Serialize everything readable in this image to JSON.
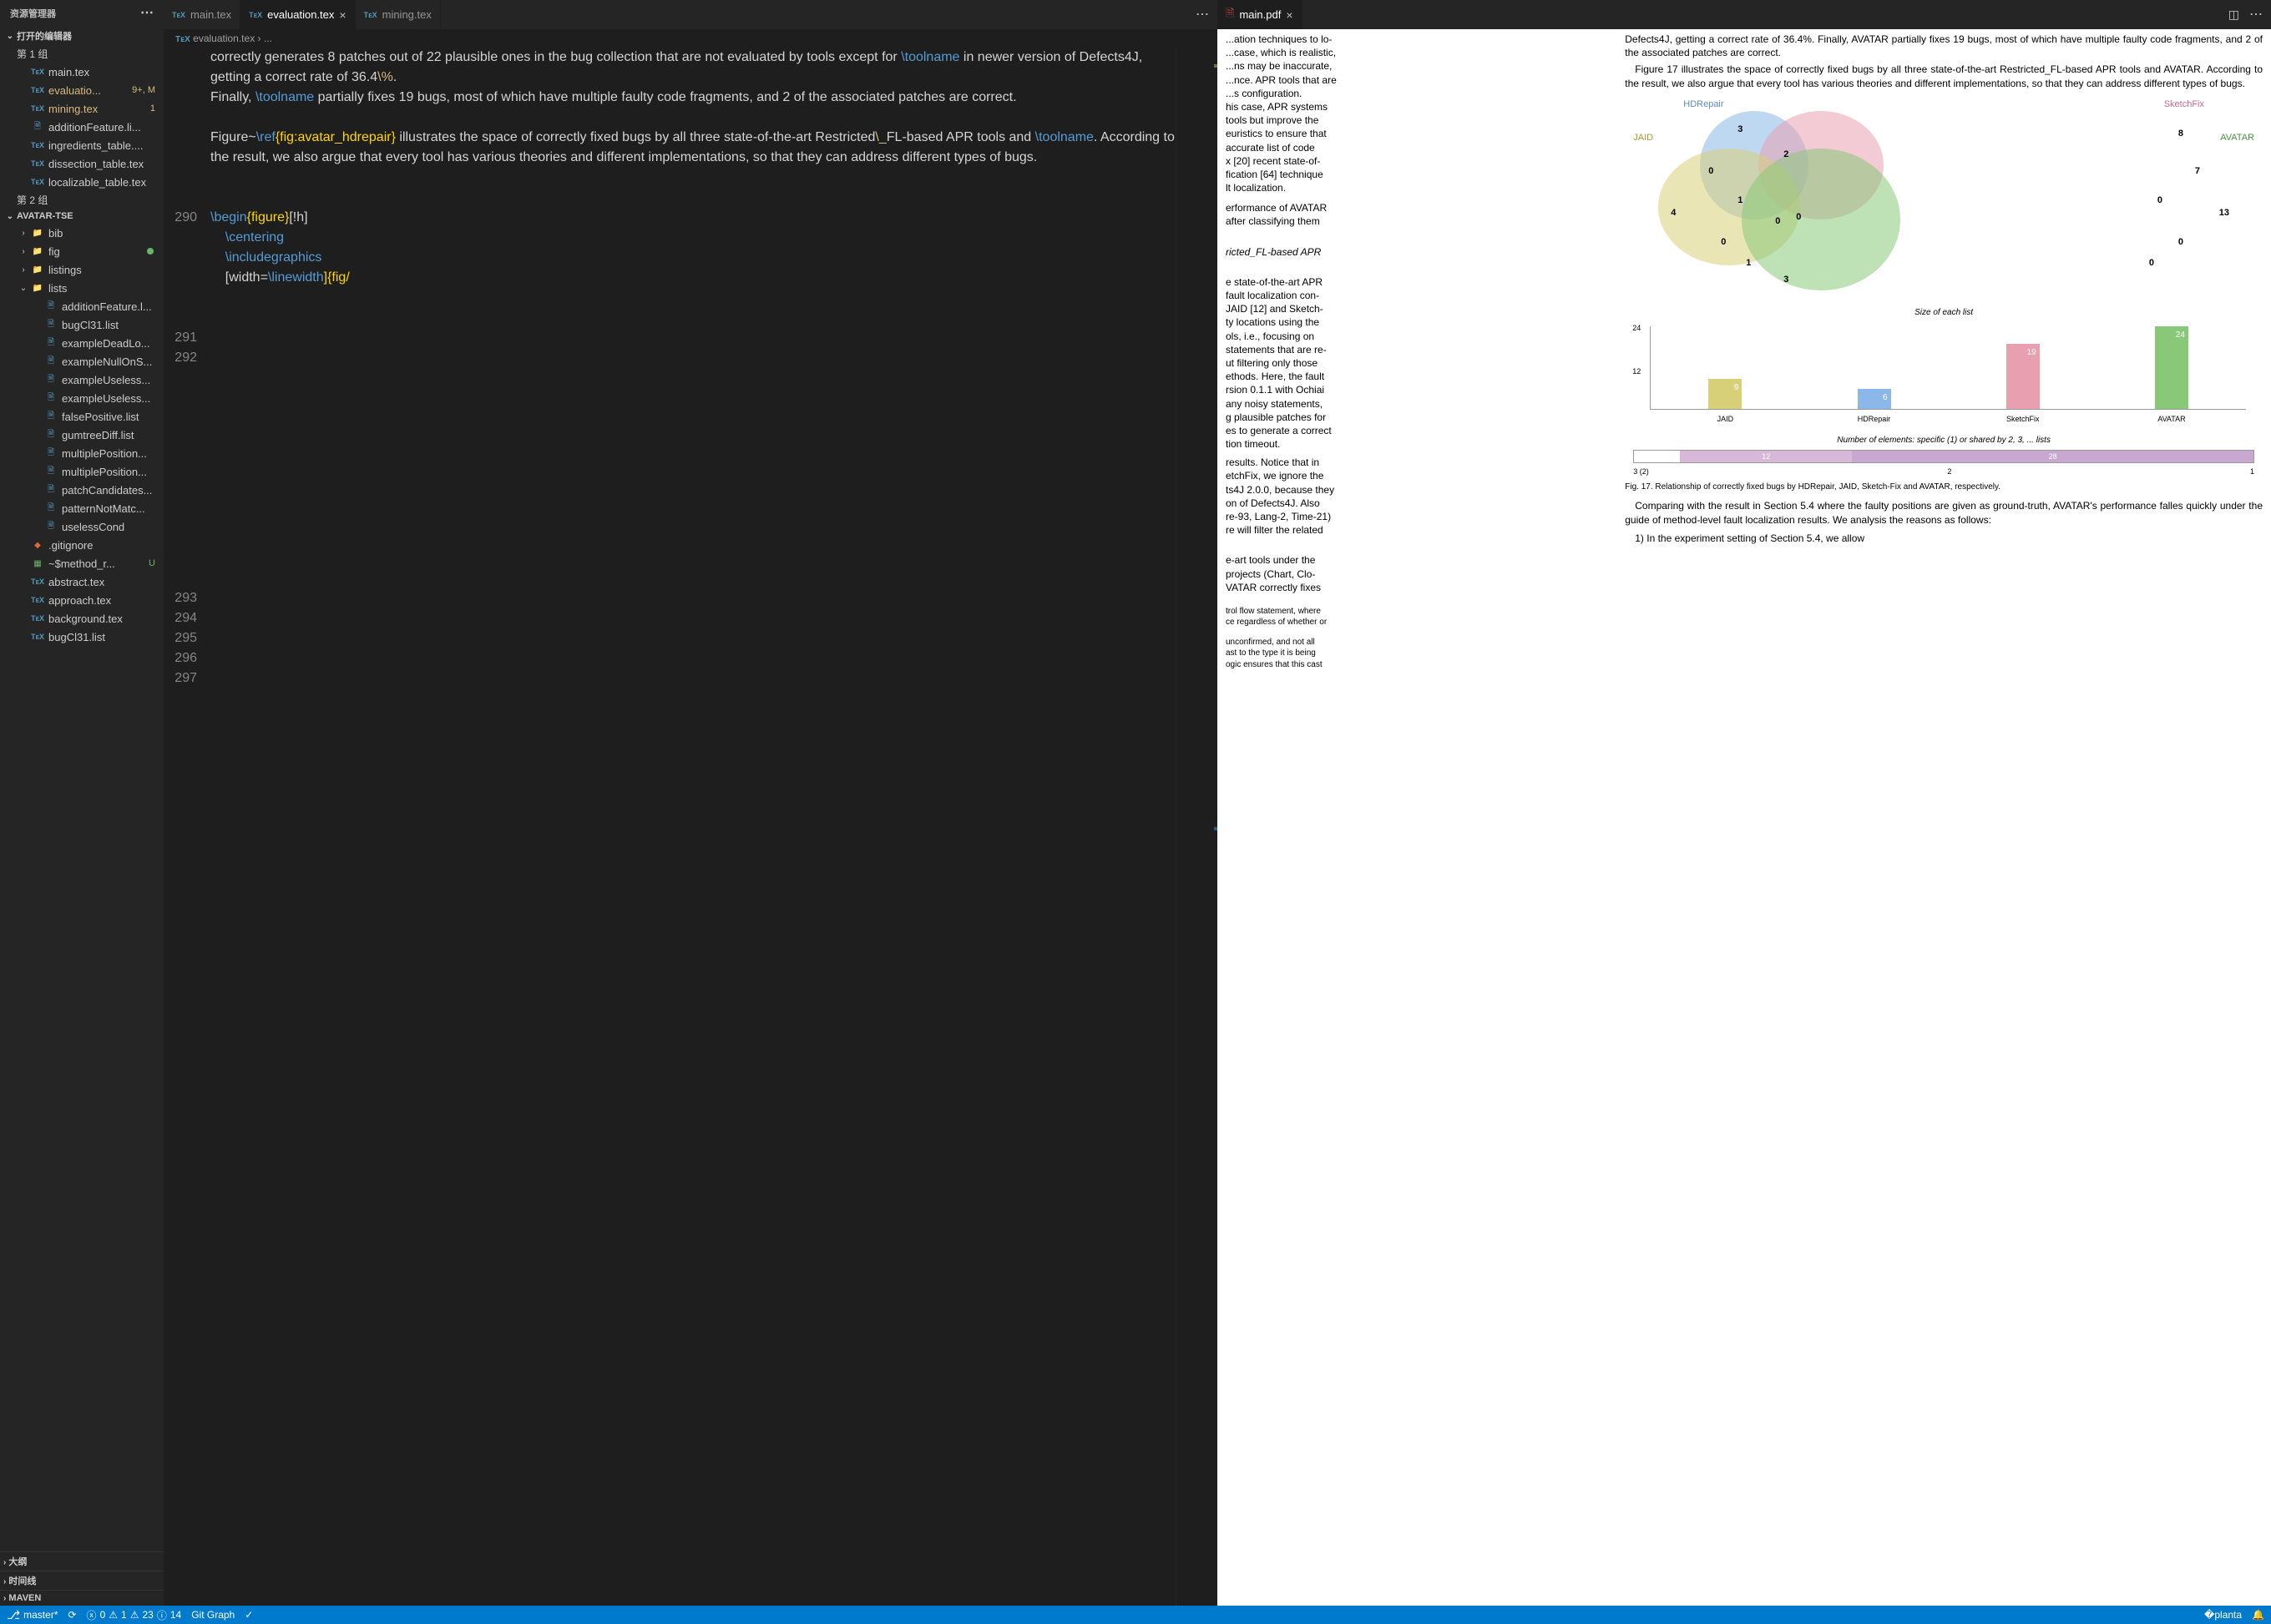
{
  "sidebar": {
    "title": "资源管理器",
    "openEditors": "打开的编辑器",
    "group1": "第 1 组",
    "group2": "第 2 组",
    "openFiles": [
      {
        "name": "main.tex",
        "type": "tex"
      },
      {
        "name": "evaluatio...",
        "type": "tex",
        "badge": "9+, M",
        "modified": true
      },
      {
        "name": "mining.tex",
        "type": "tex",
        "badge": "1",
        "modified": true
      },
      {
        "name": "additionFeature.li...",
        "type": "list"
      },
      {
        "name": "ingredients_table....",
        "type": "tex"
      },
      {
        "name": "dissection_table.tex",
        "type": "tex"
      },
      {
        "name": "localizable_table.tex",
        "type": "tex"
      }
    ],
    "projectName": "AVATAR-TSE",
    "folders": [
      {
        "name": "bib",
        "expanded": false
      },
      {
        "name": "fig",
        "expanded": false,
        "dot": true
      },
      {
        "name": "listings",
        "expanded": false
      },
      {
        "name": "lists",
        "expanded": true
      }
    ],
    "listFiles": [
      "additionFeature.l...",
      "bugCl31.list",
      "exampleDeadLo...",
      "exampleNullOnS...",
      "exampleUseless...",
      "exampleUseless...",
      "falsePositive.list",
      "gumtreeDiff.list",
      "multiplePosition...",
      "multiplePosition...",
      "patchCandidates...",
      "patternNotMatc...",
      "uselessCond"
    ],
    "rootFiles": [
      {
        "name": ".gitignore",
        "icon": "git"
      },
      {
        "name": "~$method_r...",
        "icon": "xls",
        "badge": "U"
      },
      {
        "name": "abstract.tex",
        "icon": "tex"
      },
      {
        "name": "approach.tex",
        "icon": "tex"
      },
      {
        "name": "background.tex",
        "icon": "tex"
      },
      {
        "name": "bugCl31.list",
        "icon": "tex"
      }
    ],
    "collapsedSections": [
      "大纲",
      "时间线",
      "MAVEN"
    ]
  },
  "editor": {
    "tabs": [
      {
        "name": "main.tex",
        "active": false
      },
      {
        "name": "evaluation.tex",
        "active": true,
        "close": true
      },
      {
        "name": "mining.tex",
        "active": false
      }
    ],
    "breadcrumb": "evaluation.tex › ...",
    "lines": {
      "290": "290",
      "291": "291",
      "292": "292",
      "293": "293",
      "294": "294",
      "295": "295",
      "296": "296",
      "297": "297"
    },
    "codeBlocks": {
      "pre290": "correctly generates 8 patches out of 22 plausible ones in the bug collection that are not evaluated by tools except for ",
      "toolname": "\\toolname",
      "pre290b": " in newer version of Defects4J, getting a correct rate of 36.4",
      "pct": "\\%",
      "dot1": ".",
      "line290a": "Finally, ",
      "line290b": " partially fixes 19 bugs, most of which have multiple faulty code fragments, and 2 of the associated patches are correct.",
      "line292a": "Figure~",
      "ref": "\\ref",
      "line292b": "{fig:avatar_hdrepair}",
      "line292c": " illustrates the space of correctly fixed bugs by all three state-of-the-art Restricted",
      "escus": "\\_",
      "line292d": "FL-based APR tools and ",
      "line292e": ". According to the result, we also argue that every tool has various theories and different implementations, so that they can address different types of bugs.",
      "begin": "\\begin",
      "figure": "{figure}",
      "figopt": "[!h]",
      "centering": "\\centering",
      "includeg": "\\includegraphics",
      "width": "[width=",
      "linewidth": "\\linewidth",
      "widthend": "]{fig/"
    }
  },
  "pdf": {
    "tab": "main.pdf",
    "leftCol": {
      "p1": "...ation techniques to lo-\n...case, which is realistic,\n...ns may be inaccurate,\n...nce. APR tools that are\n...s configuration.\nhis case, APR systems\n tools but improve the\neuristics to ensure that\n accurate list of code\nx [20] recent state-of-\nfication [64] technique\nlt localization.",
      "p2": "erformance of AVATAR\nafter classifying them",
      "heading": "ricted_FL-based APR",
      "p3": "e state-of-the-art APR\n fault localization con-\nJAID [12] and Sketch-\nty locations using the\nols, i.e., focusing on\nstatements that are re-\nut filtering only those\nethods. Here, the fault\nrsion 0.1.1 with Ochiai\nany noisy statements,\ng plausible patches for\nes to generate a correct\ntion timeout.",
      "p4": "results. Notice that in\netchFix, we ignore the\nts4J 2.0.0, because they\non of Defects4J. Also\nre-93, Lang-2, Time-21)\nre will filter the related",
      "p5": "e-art tools under the\n projects (Chart, Clo-\nVATAR correctly fixes",
      "p6": "trol flow statement, where\nce regardless of whether or",
      "p7": " unconfirmed, and not all\nast to the type it is being\nogic ensures that this cast"
    },
    "rightCol": {
      "p1": "Defects4J, getting a correct rate of 36.4%. Finally, AVATAR partially fixes 19 bugs, most of which have multiple faulty code fragments, and 2 of the associated patches are correct.",
      "p2": "Figure 17 illustrates the space of correctly fixed bugs by all three state-of-the-art Restricted_FL-based APR tools and AVATAR. According to the result, we also argue that every tool has various theories and different implementations, so that they can address different types of bugs.",
      "caption": "Fig. 17. Relationship of correctly fixed bugs by HDRepair, JAID, Sketch-Fix and AVATAR, respectively.",
      "p3": "Comparing with the result in Section 5.4 where the faulty positions are given as ground-truth, AVATAR's performance falles quickly under the guide of method-level fault localization results. We analysis the reasons as follows:",
      "p4": "1) In the experiment setting of Section 5.4, we allow",
      "venn": {
        "labels": {
          "hd": "HDRepair",
          "sf": "SketchFix",
          "jaid": "JAID",
          "av": "AVATAR"
        },
        "colors": {
          "hd": "#8bb8e8",
          "sf": "#e8a0b0",
          "jaid": "#d8d078",
          "av": "#88c878"
        },
        "values": {
          "hdTop": "3",
          "sfTop": "8",
          "jaidLeft": "4",
          "avRight": "13",
          "center": "0",
          "hdJaid": "0",
          "sfAv": "7",
          "jaidSf": "1",
          "hdSf": "2",
          "jaidAv": "1",
          "hdAv": "0",
          "center2": "0",
          "center3": "0",
          "bot": "3",
          "jaidBot": "0",
          "avBot": "0"
        }
      },
      "barChart": {
        "title": "Size of each list",
        "yTicks": [
          "24",
          "12"
        ],
        "bars": [
          {
            "label": "JAID",
            "value": "9",
            "height": 37,
            "color": "#d8d078"
          },
          {
            "label": "HDRepair",
            "value": "6",
            "height": 25,
            "color": "#8bb8e8"
          },
          {
            "label": "SketchFix",
            "value": "19",
            "height": 79,
            "color": "#e8a0b0"
          },
          {
            "label": "AVATAR",
            "value": "24",
            "height": 100,
            "color": "#88c878"
          }
        ]
      },
      "stackedTitle": "Number of elements: specific (1) or shared by 2, 3, ... lists",
      "stacked": [
        {
          "label": "12",
          "width": 30,
          "color": "#d8b8d8"
        },
        {
          "label": "28",
          "width": 70,
          "color": "#c8a8d0"
        }
      ],
      "stackedAxis": {
        "left": "3 (2)",
        "mid": "2",
        "right": "1"
      }
    }
  },
  "statusBar": {
    "branch": "master*",
    "errors": "0",
    "warnings": "1",
    "info": "23",
    "hints": "14",
    "gitGraph": "Git Graph"
  }
}
